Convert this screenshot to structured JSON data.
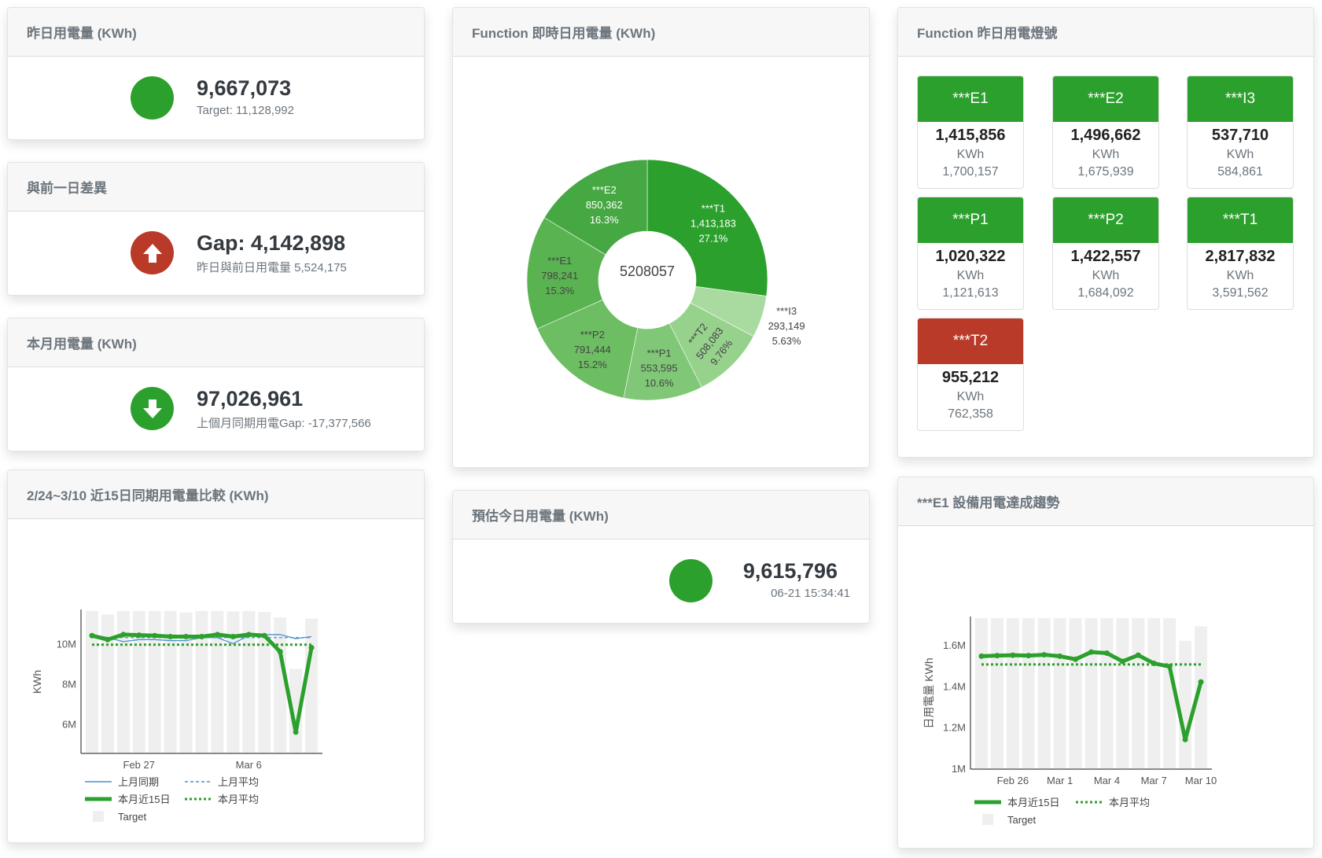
{
  "colors": {
    "green": "#2ca02c",
    "red": "#b93a28",
    "blue": "#4a90d0",
    "target_gray": "#efefef"
  },
  "yesterday": {
    "title": "昨日用電量 (KWh)",
    "status": "green",
    "value": "9,667,073",
    "target": "Target: 11,128,992"
  },
  "gap": {
    "title": "與前一日差異",
    "icon": "arrow-up-icon",
    "value": "Gap: 4,142,898",
    "detail": "昨日與前日用電量 5,524,175"
  },
  "month": {
    "title": "本月用電量 (KWh)",
    "icon": "arrow-down-icon",
    "value": "97,026,961",
    "detail": "上個月同期用電Gap: -17,377,566"
  },
  "donut": {
    "title": "Function 即時日用電量 (KWh)",
    "center": "5208057",
    "slices": [
      {
        "name": "***T1",
        "value": 1413183,
        "label_value": "1,413,183",
        "pct": "27.1%",
        "color": "#2ca02c",
        "text": "#ffffff"
      },
      {
        "name": "***I3",
        "value": 293149,
        "label_value": "293,149",
        "pct": "5.63%",
        "color": "#a9dba1",
        "text": "#444444"
      },
      {
        "name": "***T2",
        "value": 508083,
        "label_value": "508,083",
        "pct": "9.76%",
        "color": "#97d28d",
        "text": "#444444"
      },
      {
        "name": "***P1",
        "value": 553595,
        "label_value": "553,595",
        "pct": "10.6%",
        "color": "#80c777",
        "text": "#444444"
      },
      {
        "name": "***P2",
        "value": 791444,
        "label_value": "791,444",
        "pct": "15.2%",
        "color": "#6dbd63",
        "text": "#444444"
      },
      {
        "name": "***E1",
        "value": 798241,
        "label_value": "798,241",
        "pct": "15.3%",
        "color": "#5ab351",
        "text": "#444444"
      },
      {
        "name": "***E2",
        "value": 850362,
        "label_value": "850,362",
        "pct": "16.3%",
        "color": "#45a842",
        "text": "#ffffff"
      }
    ]
  },
  "estimate": {
    "title": "預估今日用電量 (KWh)",
    "status": "green",
    "value": "9,615,796",
    "timestamp": "06-21 15:34:41"
  },
  "lights": {
    "title": "Function 昨日用電燈號",
    "tiles": [
      {
        "name": "***E1",
        "value": "1,415,856",
        "unit": "KWh",
        "target": "1,700,157",
        "status": "green"
      },
      {
        "name": "***E2",
        "value": "1,496,662",
        "unit": "KWh",
        "target": "1,675,939",
        "status": "green"
      },
      {
        "name": "***I3",
        "value": "537,710",
        "unit": "KWh",
        "target": "584,861",
        "status": "green"
      },
      {
        "name": "***P1",
        "value": "1,020,322",
        "unit": "KWh",
        "target": "1,121,613",
        "status": "green"
      },
      {
        "name": "***P2",
        "value": "1,422,557",
        "unit": "KWh",
        "target": "1,684,092",
        "status": "green"
      },
      {
        "name": "***T1",
        "value": "2,817,832",
        "unit": "KWh",
        "target": "3,591,562",
        "status": "green"
      },
      {
        "name": "***T2",
        "value": "955,212",
        "unit": "KWh",
        "target": "762,358",
        "status": "red"
      }
    ]
  },
  "chart_data": [
    {
      "type": "line",
      "title": "2/24~3/10 近15日同期用電量比較 (KWh)",
      "ylabel": "KWh",
      "xlabel": "",
      "x": [
        "Feb 24",
        "Feb 25",
        "Feb 26",
        "Feb 27",
        "Feb 28",
        "Mar 1",
        "Mar 2",
        "Mar 3",
        "Mar 4",
        "Mar 5",
        "Mar 6",
        "Mar 7",
        "Mar 8",
        "Mar 9",
        "Mar 10"
      ],
      "x_ticks": [
        {
          "index": 3,
          "label": "Feb 27"
        },
        {
          "index": 10,
          "label": "Mar 6"
        }
      ],
      "y_ticks": [
        {
          "value": 6000000,
          "label": "6M"
        },
        {
          "value": 8000000,
          "label": "8M"
        },
        {
          "value": 10000000,
          "label": "10M"
        }
      ],
      "ylim": [
        4580000,
        11620000
      ],
      "grid": false,
      "legend_position": "bottom",
      "series": [
        {
          "name": "上月同期",
          "style": "line-thin",
          "color": "#4a90d0",
          "values": [
            10450000,
            10300000,
            10100000,
            10200000,
            10200000,
            10150000,
            10150000,
            10300000,
            10300000,
            10000000,
            10400000,
            10450000,
            10450000,
            10250000,
            10350000
          ]
        },
        {
          "name": "上月平均",
          "style": "dashed",
          "color": "#4a90d0",
          "values": [
            10300000,
            10300000,
            10300000,
            10300000,
            10300000,
            10300000,
            10300000,
            10300000,
            10300000,
            10300000,
            10300000,
            10300000,
            10300000,
            10300000,
            10300000
          ]
        },
        {
          "name": "本月近15日",
          "style": "line-thick",
          "color": "#2ca02c",
          "values": [
            10400000,
            10200000,
            10450000,
            10420000,
            10400000,
            10350000,
            10350000,
            10350000,
            10450000,
            10350000,
            10450000,
            10400000,
            9600000,
            5600000,
            9800000
          ]
        },
        {
          "name": "本月平均",
          "style": "dotted",
          "color": "#2ca02c",
          "values": [
            9950000,
            9950000,
            9950000,
            9950000,
            9950000,
            9950000,
            9950000,
            9950000,
            9950000,
            9950000,
            9950000,
            9950000,
            9950000,
            9950000,
            9950000
          ]
        },
        {
          "name": "Target",
          "style": "bar",
          "color": "#efefef",
          "values": [
            11620000,
            11450000,
            11620000,
            11620000,
            11620000,
            11620000,
            11550000,
            11620000,
            11620000,
            11600000,
            11620000,
            11580000,
            11300000,
            8750000,
            11250000
          ]
        }
      ]
    },
    {
      "type": "line",
      "title": "***E1 設備用電達成趨勢",
      "ylabel": "日用電量 KWh",
      "xlabel": "",
      "x": [
        "Feb 24",
        "Feb 25",
        "Feb 26",
        "Feb 27",
        "Feb 28",
        "Mar 1",
        "Mar 2",
        "Mar 3",
        "Mar 4",
        "Mar 5",
        "Mar 6",
        "Mar 7",
        "Mar 8",
        "Mar 9",
        "Mar 10"
      ],
      "x_ticks": [
        {
          "index": 2,
          "label": "Feb 26"
        },
        {
          "index": 5,
          "label": "Mar 1"
        },
        {
          "index": 8,
          "label": "Mar 4"
        },
        {
          "index": 11,
          "label": "Mar 7"
        },
        {
          "index": 14,
          "label": "Mar 10"
        }
      ],
      "y_ticks": [
        {
          "value": 1000000,
          "label": "1M"
        },
        {
          "value": 1200000,
          "label": "1.2M"
        },
        {
          "value": 1400000,
          "label": "1.4M"
        },
        {
          "value": 1600000,
          "label": "1.6M"
        }
      ],
      "ylim": [
        1000000,
        1730000
      ],
      "grid": false,
      "legend_position": "bottom",
      "series": [
        {
          "name": "本月近15日",
          "style": "line-thick",
          "color": "#2ca02c",
          "values": [
            1545000,
            1548000,
            1550000,
            1548000,
            1552000,
            1545000,
            1530000,
            1565000,
            1560000,
            1520000,
            1550000,
            1510000,
            1495000,
            1140000,
            1420000
          ]
        },
        {
          "name": "本月平均",
          "style": "dotted",
          "color": "#2ca02c",
          "values": [
            1505000,
            1505000,
            1505000,
            1505000,
            1505000,
            1505000,
            1505000,
            1505000,
            1505000,
            1505000,
            1505000,
            1505000,
            1505000,
            1505000,
            1505000
          ]
        },
        {
          "name": "Target",
          "style": "bar",
          "color": "#efefef",
          "values": [
            1730000,
            1730000,
            1730000,
            1730000,
            1730000,
            1730000,
            1730000,
            1730000,
            1730000,
            1730000,
            1730000,
            1730000,
            1730000,
            1620000,
            1690000
          ]
        }
      ]
    }
  ]
}
